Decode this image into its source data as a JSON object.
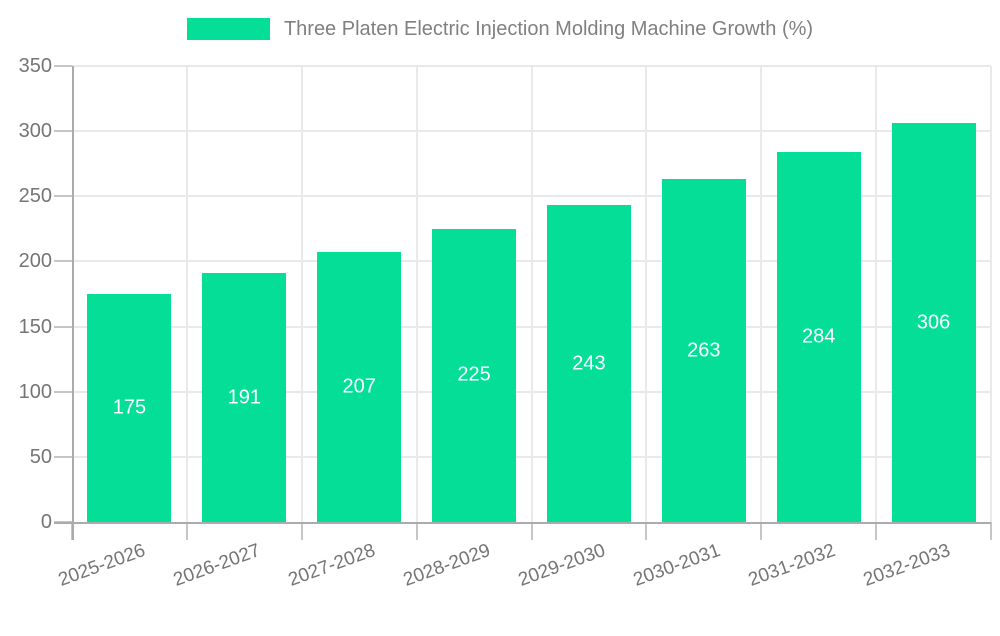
{
  "legend": {
    "label": "Three Platen Electric Injection Molding Machine Growth (%)",
    "swatch_color": "#05DE96"
  },
  "chart_data": {
    "type": "bar",
    "title": "Three Platen Electric Injection Molding Machine Growth (%)",
    "categories": [
      "2025-2026",
      "2026-2027",
      "2027-2028",
      "2028-2029",
      "2029-2030",
      "2030-2031",
      "2031-2032",
      "2032-2033"
    ],
    "values": [
      175,
      191,
      207,
      225,
      243,
      263,
      284,
      306
    ],
    "value_labels": [
      "175",
      "191",
      "207",
      "225",
      "243",
      "263",
      "284",
      "306"
    ],
    "xlabel": "",
    "ylabel": "",
    "ylim": [
      0,
      350
    ],
    "yticks": [
      0,
      50,
      100,
      150,
      200,
      250,
      300,
      350
    ],
    "grid": true,
    "legend_position": "top",
    "bar_color": "#05DE96",
    "value_label_color": "#ffffff",
    "tick_label_color": "#757575",
    "title_color": "#808080",
    "grid_color": "#e9e9e9",
    "axis_color": "#ababab",
    "tick_color": "#c6c6c6"
  }
}
